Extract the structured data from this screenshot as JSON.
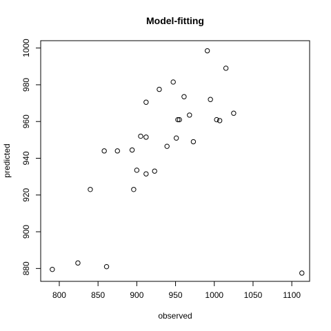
{
  "chart_data": {
    "type": "scatter",
    "title": "Model-fitting",
    "xlabel": "observed",
    "ylabel": "predicted",
    "xlim": [
      776,
      1123
    ],
    "ylim": [
      873,
      1004
    ],
    "x_ticks": [
      800,
      850,
      900,
      950,
      1000,
      1050,
      1100
    ],
    "y_ticks": [
      880,
      900,
      920,
      940,
      960,
      980,
      1000
    ],
    "grid": false,
    "points": [
      {
        "x": 791,
        "y": 879.5
      },
      {
        "x": 824,
        "y": 883
      },
      {
        "x": 861,
        "y": 881
      },
      {
        "x": 840,
        "y": 923
      },
      {
        "x": 858,
        "y": 944
      },
      {
        "x": 875,
        "y": 944
      },
      {
        "x": 894,
        "y": 944.5
      },
      {
        "x": 896,
        "y": 923
      },
      {
        "x": 900,
        "y": 933.5
      },
      {
        "x": 905,
        "y": 952
      },
      {
        "x": 912,
        "y": 951.5
      },
      {
        "x": 912,
        "y": 931.5
      },
      {
        "x": 912,
        "y": 970.5
      },
      {
        "x": 923,
        "y": 933
      },
      {
        "x": 929,
        "y": 977.5
      },
      {
        "x": 939,
        "y": 946.5
      },
      {
        "x": 947,
        "y": 981.5
      },
      {
        "x": 951,
        "y": 951
      },
      {
        "x": 953,
        "y": 961
      },
      {
        "x": 955,
        "y": 961
      },
      {
        "x": 961,
        "y": 973.5
      },
      {
        "x": 968,
        "y": 963.5
      },
      {
        "x": 973,
        "y": 949
      },
      {
        "x": 991,
        "y": 998.5
      },
      {
        "x": 995,
        "y": 972
      },
      {
        "x": 1003,
        "y": 961
      },
      {
        "x": 1007,
        "y": 960.5
      },
      {
        "x": 1015,
        "y": 989
      },
      {
        "x": 1025,
        "y": 964.5
      },
      {
        "x": 1113,
        "y": 877.5
      }
    ]
  }
}
